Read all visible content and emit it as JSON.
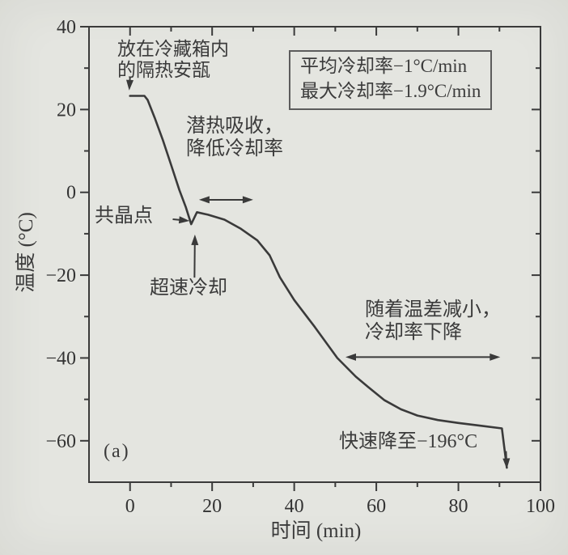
{
  "page": {
    "panel_label": "(a)"
  },
  "colors": {
    "background": "#e4e5e0",
    "ink": "#3a3a3a",
    "text": "#3b3b3b"
  },
  "chart_data": {
    "type": "line",
    "title": "",
    "xlabel": "时间 (min)",
    "ylabel": "温度 (°C)",
    "xlim": [
      -10,
      100
    ],
    "ylim": [
      -70,
      40
    ],
    "grid": false,
    "x_major_ticks": [
      0,
      20,
      40,
      60,
      80,
      100
    ],
    "x_minor_ticks": [
      10,
      30,
      50,
      70,
      90
    ],
    "y_major_ticks": [
      40,
      20,
      0,
      -20,
      -40,
      -60
    ],
    "y_minor_ticks": [
      30,
      10,
      -10,
      -30,
      -50
    ],
    "x_tick_labels": [
      "0",
      "20",
      "40",
      "60",
      "80",
      "100"
    ],
    "y_tick_labels": [
      "40",
      "20",
      "0",
      "−20",
      "−40",
      "−60"
    ],
    "series": [
      {
        "name": "cooling-curve",
        "points": [
          [
            0,
            23.3
          ],
          [
            3.5,
            23.3
          ],
          [
            4.3,
            22.3
          ],
          [
            6,
            18
          ],
          [
            8,
            12.6
          ],
          [
            10,
            6.6
          ],
          [
            12,
            0.6
          ],
          [
            13.6,
            -3.6
          ],
          [
            14.9,
            -7.7
          ],
          [
            16.3,
            -4.8
          ],
          [
            19,
            -5.4
          ],
          [
            23,
            -6.6
          ],
          [
            27,
            -8.8
          ],
          [
            31,
            -11.6
          ],
          [
            34,
            -15.2
          ],
          [
            36.5,
            -20.5
          ],
          [
            40,
            -26
          ],
          [
            45,
            -32.5
          ],
          [
            50.5,
            -40
          ],
          [
            55,
            -44.5
          ],
          [
            58,
            -47
          ],
          [
            62,
            -50.2
          ],
          [
            66,
            -52.4
          ],
          [
            70,
            -53.9
          ],
          [
            75,
            -55
          ],
          [
            80,
            -55.7
          ],
          [
            85,
            -56.3
          ],
          [
            90.6,
            -57
          ],
          [
            91.8,
            -66.5
          ]
        ]
      }
    ],
    "key_points": {
      "start_temperature_c": 23,
      "eutectic_dip": [
        14.9,
        -7.7
      ],
      "final_drop_start": [
        90.6,
        -57
      ]
    },
    "arrows": [
      {
        "name": "ampoule-arrow",
        "from": [
          0,
          27.8
        ],
        "to": [
          -0.2,
          24.6
        ],
        "heads": "end"
      },
      {
        "name": "eutectic-arrow",
        "from": [
          10.4,
          -6.5
        ],
        "to": [
          14.5,
          -6.9
        ],
        "heads": "end"
      },
      {
        "name": "supercool-arrow",
        "from": [
          15.7,
          -20.6
        ],
        "to": [
          15.8,
          -10.2
        ],
        "heads": "end"
      },
      {
        "name": "latent-range-arrow",
        "from": [
          16.8,
          -1.8
        ],
        "to": [
          30,
          -1.8
        ],
        "heads": "both"
      },
      {
        "name": "deltaT-range-arrow",
        "from": [
          52.5,
          -39.8
        ],
        "to": [
          90.2,
          -39.8
        ],
        "heads": "both"
      },
      {
        "name": "plunge-arrow",
        "from": [
          91.6,
          -62.5
        ],
        "to": [
          91.8,
          -66.8
        ],
        "heads": "end"
      }
    ]
  },
  "annotations": {
    "ampoule": "放在冷藏箱内\n的隔热安瓿",
    "latent": "潜热吸收，\n降低冷却率",
    "eutectic": "共晶点",
    "supercool": "超速冷却",
    "delta_t": "随着温差减小，\n冷却率下降",
    "rapid": "快速降至−196°C"
  },
  "legend": {
    "line1": "平均冷却率−1°C/min",
    "line2": "最大冷却率−1.9°C/min"
  }
}
